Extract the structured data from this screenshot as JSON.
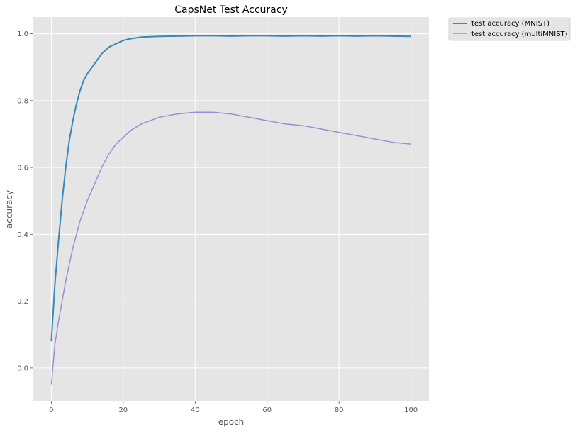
{
  "chart_data": {
    "type": "line",
    "title": "CapsNet Test Accuracy",
    "xlabel": "epoch",
    "ylabel": "accuracy",
    "xlim": [
      -5,
      105
    ],
    "ylim": [
      -0.1,
      1.05
    ],
    "xticks": [
      0,
      20,
      40,
      60,
      80,
      100
    ],
    "yticks": [
      0.0,
      0.2,
      0.4,
      0.6,
      0.8,
      1.0
    ],
    "x_tick_labels": [
      "0",
      "20",
      "40",
      "60",
      "80",
      "100"
    ],
    "y_tick_labels": [
      "0.0",
      "0.2",
      "0.4",
      "0.6",
      "0.8",
      "1.0"
    ],
    "grid": true,
    "background": "#e5e5e5",
    "legend_position": "outside-top-right",
    "series": [
      {
        "name": "test accuracy (MNIST)",
        "color": "#348abd",
        "x": [
          0,
          1,
          2,
          3,
          4,
          5,
          6,
          7,
          8,
          9,
          10,
          12,
          14,
          16,
          18,
          20,
          22,
          25,
          30,
          35,
          40,
          45,
          50,
          55,
          60,
          65,
          70,
          75,
          80,
          85,
          90,
          95,
          100
        ],
        "y": [
          0.08,
          0.25,
          0.38,
          0.5,
          0.6,
          0.68,
          0.74,
          0.79,
          0.83,
          0.86,
          0.88,
          0.91,
          0.94,
          0.96,
          0.97,
          0.98,
          0.985,
          0.99,
          0.992,
          0.993,
          0.994,
          0.994,
          0.993,
          0.994,
          0.994,
          0.993,
          0.994,
          0.993,
          0.994,
          0.993,
          0.994,
          0.993,
          0.992
        ]
      },
      {
        "name": "test accuracy (multiMNIST)",
        "color": "#988ed5",
        "x": [
          0,
          1,
          2,
          3,
          4,
          5,
          6,
          7,
          8,
          9,
          10,
          12,
          14,
          16,
          18,
          20,
          22,
          25,
          30,
          35,
          40,
          45,
          50,
          55,
          60,
          65,
          70,
          75,
          80,
          85,
          90,
          95,
          100
        ],
        "y": [
          -0.05,
          0.07,
          0.14,
          0.2,
          0.26,
          0.31,
          0.36,
          0.4,
          0.44,
          0.47,
          0.5,
          0.55,
          0.6,
          0.64,
          0.67,
          0.69,
          0.71,
          0.73,
          0.75,
          0.76,
          0.765,
          0.765,
          0.76,
          0.75,
          0.74,
          0.73,
          0.725,
          0.715,
          0.705,
          0.695,
          0.685,
          0.675,
          0.67
        ]
      }
    ]
  }
}
